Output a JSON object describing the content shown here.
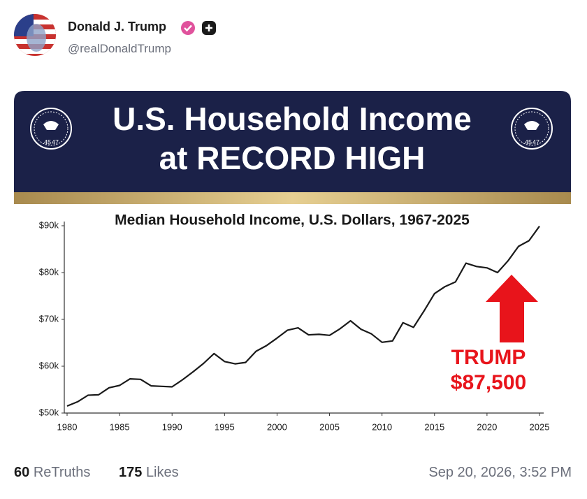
{
  "post": {
    "author": "Donald J. Trump",
    "handle": "@realDonaldTrump",
    "retruths_count": 60,
    "retruths_label": "ReTruths",
    "likes_count": 175,
    "likes_label": "Likes",
    "timestamp": "Sep 20, 2026, 3:52 PM"
  },
  "banner": {
    "title_lines": [
      "U.S. Household Income",
      "at RECORD HIGH"
    ],
    "seal_text": [
      "45",
      "47"
    ]
  },
  "chart_data": {
    "type": "line",
    "title": "Median Household Income, U.S. Dollars, 1967-2025",
    "x": [
      1980,
      1981,
      1982,
      1983,
      1984,
      1985,
      1986,
      1987,
      1988,
      1989,
      1990,
      1991,
      1992,
      1993,
      1994,
      1995,
      1996,
      1997,
      1998,
      1999,
      2000,
      2001,
      2002,
      2003,
      2004,
      2005,
      2006,
      2007,
      2008,
      2009,
      2010,
      2011,
      2012,
      2013,
      2014,
      2015,
      2016,
      2017,
      2018,
      2019,
      2020,
      2021,
      2022,
      2023,
      2024,
      2025
    ],
    "values": [
      51500,
      52400,
      53800,
      53900,
      55400,
      55900,
      57300,
      57200,
      55800,
      55700,
      55600,
      57100,
      58800,
      60600,
      62700,
      61000,
      60500,
      60800,
      63200,
      64400,
      66000,
      67700,
      68200,
      66700,
      66800,
      66600,
      68000,
      69700,
      67900,
      66900,
      65100,
      65400,
      69300,
      68300,
      71800,
      75500,
      77000,
      78000,
      82000,
      81300,
      81000,
      80000,
      82500,
      85600,
      86800,
      89900
    ],
    "color": "#1a1a1a",
    "xlim": [
      1980,
      2025
    ],
    "xticks": [
      1980,
      1985,
      1990,
      1995,
      2000,
      2005,
      2010,
      2015,
      2020,
      2025
    ],
    "ylim": [
      50000,
      90000
    ],
    "yticks": [
      {
        "value": 50000,
        "label": "$50k"
      },
      {
        "value": 60000,
        "label": "$60k"
      },
      {
        "value": 70000,
        "label": "$70k"
      },
      {
        "value": 80000,
        "label": "$80k"
      },
      {
        "value": 90000,
        "label": "$90k"
      }
    ],
    "annotation": {
      "lines": [
        "TRUMP",
        "$87,500"
      ],
      "color": "#e8141b"
    }
  }
}
